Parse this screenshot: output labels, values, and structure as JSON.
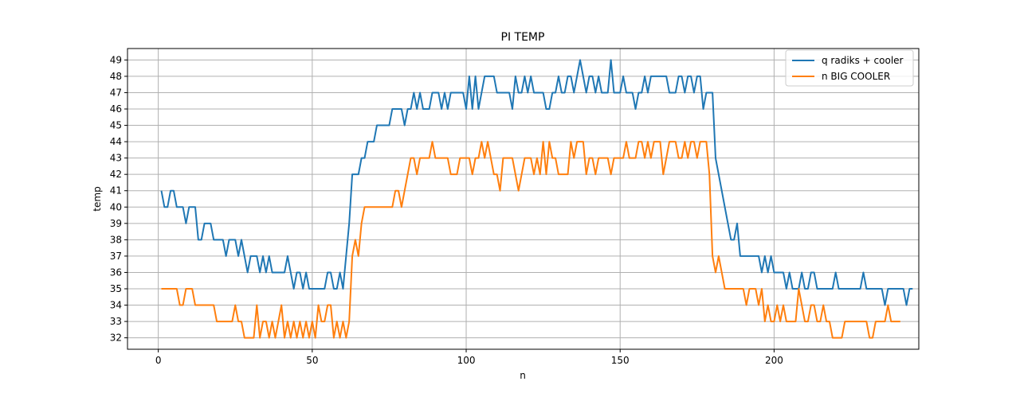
{
  "chart_data": {
    "type": "line",
    "title": "PI TEMP",
    "xlabel": "n",
    "ylabel": "temp",
    "xlim": [
      -10,
      247
    ],
    "ylim": [
      31.3,
      49.7
    ],
    "xticks": [
      0,
      50,
      100,
      150,
      200
    ],
    "yticks": [
      32,
      33,
      34,
      35,
      36,
      37,
      38,
      39,
      40,
      41,
      42,
      43,
      44,
      45,
      46,
      47,
      48,
      49
    ],
    "grid": true,
    "legend_position": "top-right",
    "series": [
      {
        "name": "q radiks + cooler",
        "color": "#1f77b4",
        "x_start": 1,
        "values": [
          41,
          40,
          40,
          41,
          41,
          40,
          40,
          40,
          39,
          40,
          40,
          40,
          38,
          38,
          39,
          39,
          39,
          38,
          38,
          38,
          38,
          37,
          38,
          38,
          38,
          37,
          38,
          37,
          36,
          37,
          37,
          37,
          36,
          37,
          36,
          37,
          36,
          36,
          36,
          36,
          36,
          37,
          36,
          35,
          36,
          36,
          35,
          36,
          35,
          35,
          35,
          35,
          35,
          35,
          36,
          36,
          35,
          35,
          36,
          35,
          37,
          39,
          42,
          42,
          42,
          43,
          43,
          44,
          44,
          44,
          45,
          45,
          45,
          45,
          45,
          46,
          46,
          46,
          46,
          45,
          46,
          46,
          47,
          46,
          47,
          46,
          46,
          46,
          47,
          47,
          47,
          46,
          47,
          46,
          47,
          47,
          47,
          47,
          47,
          46,
          48,
          46,
          48,
          46,
          47,
          48,
          48,
          48,
          48,
          47,
          47,
          47,
          47,
          47,
          46,
          48,
          47,
          47,
          48,
          47,
          48,
          47,
          47,
          47,
          47,
          46,
          46,
          47,
          47,
          48,
          47,
          47,
          48,
          48,
          47,
          48,
          49,
          48,
          47,
          48,
          48,
          47,
          48,
          47,
          47,
          47,
          49,
          47,
          47,
          47,
          48,
          47,
          47,
          47,
          46,
          47,
          47,
          48,
          47,
          48,
          48,
          48,
          48,
          48,
          48,
          47,
          47,
          47,
          48,
          48,
          47,
          48,
          48,
          47,
          48,
          48,
          46,
          47,
          47,
          47,
          43,
          42,
          41,
          40,
          39,
          38,
          38,
          39,
          37,
          37,
          37,
          37,
          37,
          37,
          37,
          36,
          37,
          36,
          37,
          36,
          36,
          36,
          36,
          35,
          36,
          35,
          35,
          35,
          36,
          35,
          35,
          36,
          36,
          35,
          35,
          35,
          35,
          35,
          35,
          36,
          35,
          35,
          35,
          35,
          35,
          35,
          35,
          35,
          36,
          35,
          35,
          35,
          35,
          35,
          35,
          34,
          35,
          35,
          35,
          35,
          35,
          35,
          34,
          35,
          35
        ]
      },
      {
        "name": "n BIG COOLER",
        "color": "#ff7f0e",
        "x_start": 1,
        "values": [
          35,
          35,
          35,
          35,
          35,
          35,
          34,
          34,
          35,
          35,
          35,
          34,
          34,
          34,
          34,
          34,
          34,
          34,
          33,
          33,
          33,
          33,
          33,
          33,
          34,
          33,
          33,
          32,
          32,
          32,
          32,
          34,
          32,
          33,
          33,
          32,
          33,
          32,
          33,
          34,
          32,
          33,
          32,
          33,
          32,
          33,
          32,
          33,
          32,
          33,
          32,
          34,
          33,
          33,
          34,
          34,
          32,
          33,
          32,
          33,
          32,
          33,
          37,
          38,
          37,
          39,
          40,
          40,
          40,
          40,
          40,
          40,
          40,
          40,
          40,
          40,
          41,
          41,
          40,
          41,
          42,
          43,
          43,
          42,
          43,
          43,
          43,
          43,
          44,
          43,
          43,
          43,
          43,
          43,
          42,
          42,
          42,
          43,
          43,
          43,
          43,
          42,
          43,
          43,
          44,
          43,
          44,
          43,
          42,
          42,
          41,
          43,
          43,
          43,
          43,
          42,
          41,
          42,
          43,
          43,
          43,
          42,
          43,
          42,
          44,
          42,
          44,
          43,
          43,
          42,
          42,
          42,
          42,
          44,
          43,
          44,
          44,
          44,
          42,
          43,
          43,
          42,
          43,
          43,
          43,
          43,
          42,
          43,
          43,
          43,
          43,
          44,
          43,
          43,
          43,
          44,
          44,
          43,
          44,
          43,
          44,
          44,
          44,
          42,
          43,
          44,
          44,
          44,
          43,
          43,
          44,
          43,
          44,
          44,
          43,
          44,
          44,
          44,
          42,
          37,
          36,
          37,
          36,
          35,
          35,
          35,
          35,
          35,
          35,
          35,
          34,
          35,
          35,
          35,
          34,
          35,
          33,
          34,
          33,
          33,
          34,
          33,
          34,
          33,
          33,
          33,
          33,
          35,
          34,
          33,
          33,
          34,
          34,
          33,
          33,
          34,
          33,
          33,
          32,
          32,
          32,
          32,
          33,
          33,
          33,
          33,
          33,
          33,
          33,
          33,
          32,
          32,
          33,
          33,
          33,
          33,
          34,
          33,
          33,
          33,
          33
        ]
      }
    ]
  }
}
